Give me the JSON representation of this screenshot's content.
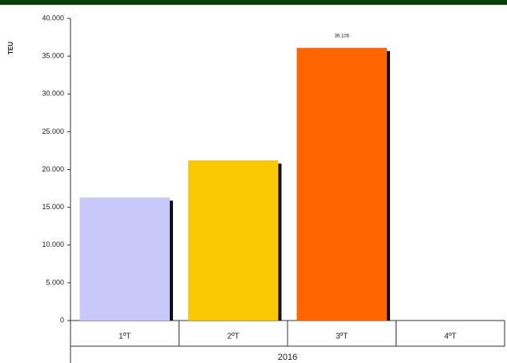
{
  "chart_data": {
    "type": "bar",
    "y_label": "TEU",
    "group_label": "2016",
    "categories": [
      "1ºT",
      "2ºT",
      "3ºT",
      "4ºT"
    ],
    "values": [
      16300,
      21200,
      36106,
      null
    ],
    "value_labels": [
      null,
      null,
      "36.106",
      null
    ],
    "colors": [
      "#c8c8fa",
      "#fac800",
      "#ff6600",
      "#cccccc"
    ],
    "ylim": [
      0,
      40000
    ],
    "yticks": [
      0,
      {
        "value": 5000,
        "label": "5.000"
      },
      {
        "value": 10000,
        "label": "10.000"
      },
      {
        "value": 15000,
        "label": "15.000"
      },
      {
        "value": 20000,
        "label": "20.000"
      },
      {
        "value": 25000,
        "label": "25.000"
      },
      {
        "value": 30000,
        "label": "30.000"
      },
      {
        "value": 35000,
        "label": "35.000"
      },
      {
        "value": 40000,
        "label": "40.000"
      }
    ]
  }
}
